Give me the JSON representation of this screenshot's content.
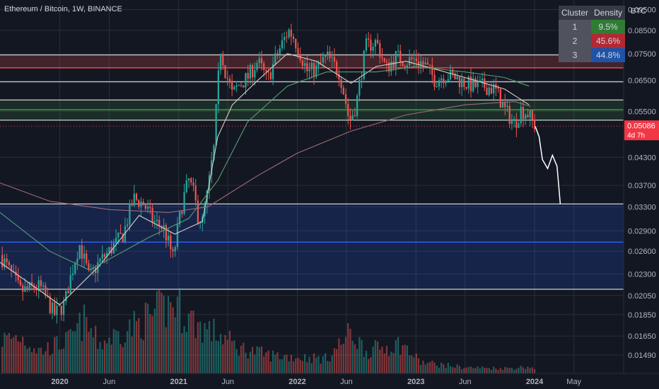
{
  "title": "Ethereum / Bitcoin, 1W, BINANCE",
  "axis_unit": "BTC",
  "colors": {
    "background": "#131722",
    "bull": "#26a69a",
    "bear": "#ef5350",
    "grid": "#2a2e39",
    "axis_text": "#b2b5be",
    "last_price_bg": "#f23645",
    "projection": "#ffffff"
  },
  "density_table": {
    "headers": [
      "Cluster",
      "Density"
    ],
    "rows": [
      {
        "cluster": "1",
        "density": "9.5%",
        "color": "#2e7d32"
      },
      {
        "cluster": "2",
        "density": "45.6%",
        "color": "#b22833"
      },
      {
        "cluster": "3",
        "density": "44.8%",
        "color": "#1e53a8"
      }
    ]
  },
  "last_price": {
    "value": "0.05086",
    "countdown": "4d 7h"
  },
  "chart_data": {
    "type": "candlestick",
    "title": "Ethereum / Bitcoin, 1W, BINANCE",
    "y_unit": "BTC",
    "y_scale": "log",
    "ylim": [
      0.0135,
      0.1
    ],
    "y_ticks": [
      "0.09500",
      "0.08500",
      "0.07500",
      "0.06500",
      "0.05500",
      "0.04300",
      "0.03700",
      "0.03300",
      "0.02900",
      "0.02600",
      "0.02300",
      "0.02050",
      "0.01850",
      "0.01650",
      "0.01490"
    ],
    "x_ticks": [
      "2020",
      "Jun",
      "2021",
      "Jun",
      "2022",
      "Jun",
      "2023",
      "Jun",
      "2024",
      "May"
    ],
    "x_tick_dates": [
      "2020-01-01",
      "2020-06-01",
      "2021-01-01",
      "2021-06-01",
      "2022-01-01",
      "2022-06-01",
      "2023-01-01",
      "2023-06-01",
      "2024-01-01",
      "2024-05-01"
    ],
    "x_range": [
      "2019-07-01",
      "2024-10-01"
    ],
    "price_path": [
      [
        "2019-07-01",
        0.0255
      ],
      [
        "2019-09-01",
        0.021
      ],
      [
        "2019-11-01",
        0.0215
      ],
      [
        "2019-12-15",
        0.0185
      ],
      [
        "2020-01-15",
        0.0195
      ],
      [
        "2020-03-01",
        0.027
      ],
      [
        "2020-04-01",
        0.0225
      ],
      [
        "2020-05-01",
        0.0245
      ],
      [
        "2020-06-01",
        0.026
      ],
      [
        "2020-07-15",
        0.0285
      ],
      [
        "2020-08-15",
        0.0345
      ],
      [
        "2020-09-15",
        0.0335
      ],
      [
        "2020-10-15",
        0.0305
      ],
      [
        "2020-11-15",
        0.0295
      ],
      [
        "2020-12-15",
        0.025
      ],
      [
        "2021-01-15",
        0.0345
      ],
      [
        "2021-02-01",
        0.038
      ],
      [
        "2021-02-15",
        0.0355
      ],
      [
        "2021-03-01",
        0.0315
      ],
      [
        "2021-03-15",
        0.0305
      ],
      [
        "2021-04-01",
        0.036
      ],
      [
        "2021-04-20",
        0.0455
      ],
      [
        "2021-05-10",
        0.077
      ],
      [
        "2021-05-25",
        0.068
      ],
      [
        "2021-06-15",
        0.06
      ],
      [
        "2021-07-01",
        0.063
      ],
      [
        "2021-08-01",
        0.066
      ],
      [
        "2021-09-01",
        0.072
      ],
      [
        "2021-10-01",
        0.065
      ],
      [
        "2021-11-01",
        0.075
      ],
      [
        "2021-12-05",
        0.085
      ],
      [
        "2021-12-20",
        0.082
      ],
      [
        "2022-01-10",
        0.075
      ],
      [
        "2022-02-01",
        0.068
      ],
      [
        "2022-03-01",
        0.069
      ],
      [
        "2022-04-01",
        0.074
      ],
      [
        "2022-05-10",
        0.068
      ],
      [
        "2022-06-10",
        0.052
      ],
      [
        "2022-07-01",
        0.057
      ],
      [
        "2022-08-01",
        0.078
      ],
      [
        "2022-09-01",
        0.08
      ],
      [
        "2022-10-01",
        0.069
      ],
      [
        "2022-11-01",
        0.074
      ],
      [
        "2022-12-01",
        0.072
      ],
      [
        "2023-01-01",
        0.073
      ],
      [
        "2023-02-01",
        0.07
      ],
      [
        "2023-03-01",
        0.065
      ],
      [
        "2023-04-01",
        0.067
      ],
      [
        "2023-05-01",
        0.066
      ],
      [
        "2023-06-01",
        0.064
      ],
      [
        "2023-07-01",
        0.063
      ],
      [
        "2023-08-01",
        0.063
      ],
      [
        "2023-09-01",
        0.062
      ],
      [
        "2023-10-01",
        0.0555
      ],
      [
        "2023-11-01",
        0.0515
      ],
      [
        "2023-11-20",
        0.0555
      ],
      [
        "2023-12-10",
        0.0545
      ],
      [
        "2024-01-03",
        0.0508
      ]
    ],
    "volume_path": [
      [
        "2019-07-01",
        0.45
      ],
      [
        "2019-09-01",
        0.5
      ],
      [
        "2019-11-01",
        0.3
      ],
      [
        "2020-02-01",
        0.45
      ],
      [
        "2020-03-15",
        0.7
      ],
      [
        "2020-05-01",
        0.4
      ],
      [
        "2020-08-01",
        0.6
      ],
      [
        "2020-10-01",
        0.75
      ],
      [
        "2020-12-20",
        0.95
      ],
      [
        "2021-01-20",
        0.8
      ],
      [
        "2021-03-01",
        0.65
      ],
      [
        "2021-05-15",
        0.5
      ],
      [
        "2021-07-01",
        0.35
      ],
      [
        "2021-10-01",
        0.25
      ],
      [
        "2022-01-01",
        0.22
      ],
      [
        "2022-04-01",
        0.2
      ],
      [
        "2022-06-15",
        0.55
      ],
      [
        "2022-08-01",
        0.3
      ],
      [
        "2022-11-15",
        0.4
      ],
      [
        "2023-01-15",
        0.15
      ],
      [
        "2023-06-01",
        0.08
      ],
      [
        "2023-10-01",
        0.07
      ],
      [
        "2023-12-20",
        0.09
      ],
      [
        "2024-01-03",
        0.05
      ]
    ],
    "moving_averages": [
      {
        "color": "#d8d0c0",
        "points": [
          [
            "2019-07-01",
            0.0245
          ],
          [
            "2020-01-01",
            0.0195
          ],
          [
            "2020-05-01",
            0.024
          ],
          [
            "2020-09-01",
            0.0315
          ],
          [
            "2020-12-20",
            0.0285
          ],
          [
            "2021-03-15",
            0.0305
          ],
          [
            "2021-05-01",
            0.048
          ],
          [
            "2021-06-15",
            0.057
          ],
          [
            "2021-09-01",
            0.065
          ],
          [
            "2021-12-01",
            0.075
          ],
          [
            "2022-03-01",
            0.072
          ],
          [
            "2022-06-15",
            0.064
          ],
          [
            "2022-09-01",
            0.07
          ],
          [
            "2022-12-01",
            0.072
          ],
          [
            "2023-03-01",
            0.069
          ],
          [
            "2023-06-01",
            0.066
          ],
          [
            "2023-10-01",
            0.062
          ],
          [
            "2023-12-15",
            0.057
          ]
        ]
      },
      {
        "color": "#5a9e6f",
        "points": [
          [
            "2019-07-01",
            0.032
          ],
          [
            "2019-12-01",
            0.026
          ],
          [
            "2020-04-01",
            0.0235
          ],
          [
            "2020-10-01",
            0.028
          ],
          [
            "2021-02-01",
            0.031
          ],
          [
            "2021-05-01",
            0.038
          ],
          [
            "2021-08-01",
            0.052
          ],
          [
            "2021-12-01",
            0.063
          ],
          [
            "2022-04-01",
            0.068
          ],
          [
            "2022-09-01",
            0.068
          ],
          [
            "2023-01-01",
            0.07
          ],
          [
            "2023-06-01",
            0.068
          ],
          [
            "2023-10-01",
            0.066
          ],
          [
            "2023-12-15",
            0.063
          ]
        ]
      },
      {
        "color": "#a06b74",
        "points": [
          [
            "2019-07-01",
            0.0375
          ],
          [
            "2019-12-01",
            0.034
          ],
          [
            "2020-06-01",
            0.0325
          ],
          [
            "2020-12-01",
            0.032
          ],
          [
            "2021-04-01",
            0.033
          ],
          [
            "2021-09-01",
            0.039
          ],
          [
            "2022-01-01",
            0.044
          ],
          [
            "2022-06-15",
            0.0495
          ],
          [
            "2022-12-01",
            0.054
          ],
          [
            "2023-06-01",
            0.057
          ],
          [
            "2023-11-01",
            0.058
          ],
          [
            "2023-12-20",
            0.0565
          ]
        ]
      }
    ],
    "projection": [
      [
        "2024-01-03",
        0.0508
      ],
      [
        "2024-01-15",
        0.048
      ],
      [
        "2024-01-25",
        0.0425
      ],
      [
        "2024-02-10",
        0.0405
      ],
      [
        "2024-02-25",
        0.0435
      ],
      [
        "2024-03-10",
        0.041
      ],
      [
        "2024-03-20",
        0.0335
      ]
    ],
    "levels": [
      {
        "price": 0.0745,
        "color": "#d0d0d0"
      },
      {
        "price": 0.0695,
        "color": "#ef5350"
      },
      {
        "price": 0.0645,
        "color": "#d0d0d0"
      },
      {
        "price": 0.0585,
        "color": "#d0d0d0"
      },
      {
        "price": 0.0555,
        "color": "#4caf50"
      },
      {
        "price": 0.0525,
        "color": "#d0d0d0"
      },
      {
        "price": 0.0335,
        "color": "#d0d0d0"
      },
      {
        "price": 0.0273,
        "color": "#2962ff"
      },
      {
        "price": 0.0212,
        "color": "#d0d0d0"
      }
    ],
    "zones": [
      {
        "from": 0.0695,
        "to": 0.0745,
        "color": "#ef5350",
        "opacity": 0.22
      },
      {
        "from": 0.0525,
        "to": 0.0585,
        "color": "#4caf50",
        "opacity": 0.15
      },
      {
        "from": 0.0212,
        "to": 0.0335,
        "color": "#2962ff",
        "opacity": 0.18
      }
    ]
  }
}
